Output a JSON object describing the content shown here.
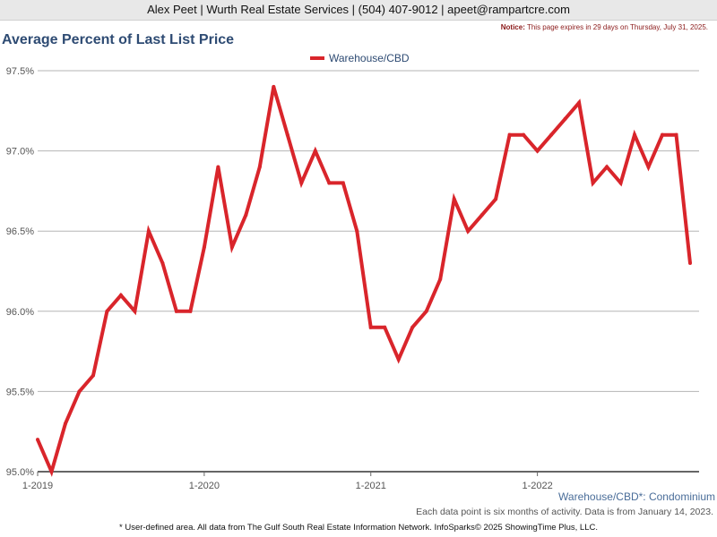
{
  "header": {
    "contact": "Alex Peet | Wurth Real Estate Services | (504) 407-9012 | apeet@rampartcre.com",
    "notice_label": "Notice:",
    "notice_text": "This page expires in 29 days on Thursday, July 31, 2025."
  },
  "footer": {
    "series_note": "Warehouse/CBD*: Condominium",
    "data_note": "Each data point is six months of activity. Data is from January 14, 2023.",
    "source": "* User-defined area. All data from The Gulf South Real Estate Information Network. InfoSparks© 2025 ShowingTime Plus, LLC."
  },
  "colors": {
    "series": "#d9252b",
    "title": "#2e4b73"
  },
  "chart_data": {
    "type": "line",
    "title": "Average Percent of Last List Price",
    "legend_position": "top-center",
    "grid": true,
    "ylim": [
      95.0,
      97.5
    ],
    "y_ticks": [
      {
        "value": 95.0,
        "label": "95.0%"
      },
      {
        "value": 95.5,
        "label": "95.5%"
      },
      {
        "value": 96.0,
        "label": "96.0%"
      },
      {
        "value": 96.5,
        "label": "96.5%"
      },
      {
        "value": 97.0,
        "label": "97.0%"
      },
      {
        "value": 97.5,
        "label": "97.5%"
      }
    ],
    "x_ticks": [
      {
        "month": "2019-01",
        "label": "1-2019"
      },
      {
        "month": "2020-01",
        "label": "1-2020"
      },
      {
        "month": "2021-01",
        "label": "1-2021"
      },
      {
        "month": "2022-01",
        "label": "1-2022"
      }
    ],
    "series": [
      {
        "name": "Warehouse/CBD",
        "x": [
          "2019-01",
          "2019-02",
          "2019-03",
          "2019-04",
          "2019-05",
          "2019-06",
          "2019-07",
          "2019-08",
          "2019-09",
          "2019-10",
          "2019-11",
          "2019-12",
          "2020-01",
          "2020-02",
          "2020-03",
          "2020-04",
          "2020-05",
          "2020-06",
          "2020-07",
          "2020-08",
          "2020-09",
          "2020-10",
          "2020-11",
          "2020-12",
          "2021-01",
          "2021-02",
          "2021-03",
          "2021-04",
          "2021-05",
          "2021-06",
          "2021-07",
          "2021-08",
          "2021-09",
          "2021-10",
          "2021-11",
          "2021-12",
          "2022-01",
          "2022-02",
          "2022-03",
          "2022-04",
          "2022-05",
          "2022-06",
          "2022-07",
          "2022-08",
          "2022-09",
          "2022-10",
          "2022-11",
          "2022-12"
        ],
        "values": [
          95.2,
          95.0,
          95.3,
          95.5,
          95.6,
          96.0,
          96.1,
          96.0,
          96.5,
          96.3,
          96.0,
          96.0,
          96.4,
          96.9,
          96.4,
          96.6,
          96.9,
          97.4,
          97.1,
          96.8,
          97.0,
          96.8,
          96.8,
          96.5,
          95.9,
          95.9,
          95.7,
          95.9,
          96.0,
          96.2,
          96.7,
          96.5,
          96.6,
          96.7,
          97.1,
          97.1,
          97.0,
          97.1,
          97.2,
          97.3,
          96.8,
          96.9,
          96.8,
          97.1,
          96.9,
          97.1,
          97.1,
          96.3
        ]
      }
    ]
  }
}
